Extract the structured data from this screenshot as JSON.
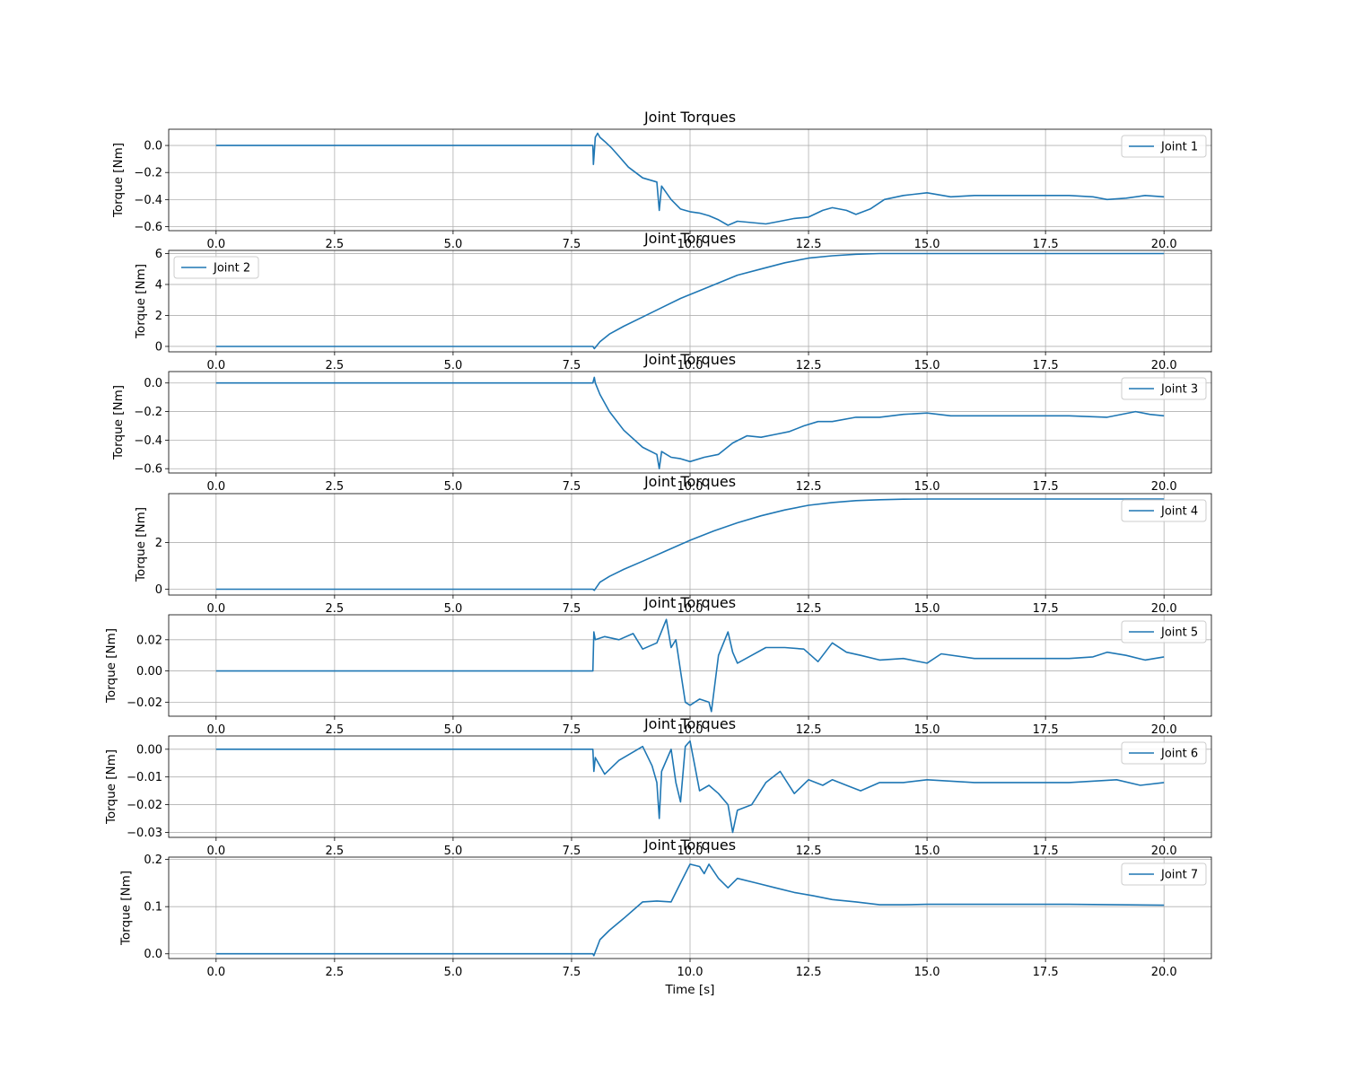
{
  "figure": {
    "background": "#ffffff",
    "line_color": "#1f77b4",
    "grid_color": "#b0b0b0"
  },
  "chart_data": [
    {
      "type": "line",
      "title": "Joint Torques",
      "xlabel": "",
      "ylabel": "Torque [Nm]",
      "xlim": [
        -1.0,
        21.0
      ],
      "ylim": [
        -0.63,
        0.12
      ],
      "xticks": [
        0.0,
        2.5,
        5.0,
        7.5,
        10.0,
        12.5,
        15.0,
        17.5,
        20.0
      ],
      "xtick_labels": [
        "0.0",
        "2.5",
        "5.0",
        "7.5",
        "10.0",
        "12.5",
        "15.0",
        "17.5",
        "20.0"
      ],
      "yticks": [
        0.0,
        -0.2,
        -0.4,
        -0.6
      ],
      "ytick_labels": [
        "0.0",
        "−0.2",
        "−0.4",
        "−0.6"
      ],
      "grid": true,
      "legend_position": "upper-right",
      "series": [
        {
          "name": "Joint 1",
          "x": [
            0.0,
            7.95,
            7.96,
            7.98,
            8.0,
            8.05,
            8.1,
            8.2,
            8.35,
            8.5,
            8.7,
            9.0,
            9.3,
            9.35,
            9.4,
            9.6,
            9.8,
            10.0,
            10.2,
            10.4,
            10.6,
            10.8,
            11.0,
            11.3,
            11.6,
            11.9,
            12.2,
            12.5,
            12.8,
            13.0,
            13.3,
            13.5,
            13.8,
            14.1,
            14.5,
            15.0,
            15.5,
            16.0,
            17.0,
            18.0,
            18.5,
            18.8,
            19.2,
            19.6,
            20.0
          ],
          "y": [
            0.0,
            0.0,
            -0.14,
            -0.05,
            0.06,
            0.09,
            0.06,
            0.03,
            -0.02,
            -0.08,
            -0.16,
            -0.24,
            -0.27,
            -0.48,
            -0.3,
            -0.4,
            -0.47,
            -0.49,
            -0.5,
            -0.52,
            -0.55,
            -0.59,
            -0.56,
            -0.57,
            -0.58,
            -0.56,
            -0.54,
            -0.53,
            -0.48,
            -0.46,
            -0.48,
            -0.51,
            -0.47,
            -0.4,
            -0.37,
            -0.35,
            -0.38,
            -0.37,
            -0.37,
            -0.37,
            -0.38,
            -0.4,
            -0.39,
            -0.37,
            -0.38
          ]
        }
      ]
    },
    {
      "type": "line",
      "title": "Joint Torques",
      "xlabel": "",
      "ylabel": "Torque [Nm]",
      "xlim": [
        -1.0,
        21.0
      ],
      "ylim": [
        -0.35,
        6.2
      ],
      "xticks": [
        0.0,
        2.5,
        5.0,
        7.5,
        10.0,
        12.5,
        15.0,
        17.5,
        20.0
      ],
      "xtick_labels": [
        "0.0",
        "2.5",
        "5.0",
        "7.5",
        "10.0",
        "12.5",
        "15.0",
        "17.5",
        "20.0"
      ],
      "yticks": [
        0,
        2,
        4,
        6
      ],
      "ytick_labels": [
        "0",
        "2",
        "4",
        "6"
      ],
      "grid": true,
      "legend_position": "upper-left",
      "series": [
        {
          "name": "Joint 2",
          "x": [
            0.0,
            7.95,
            7.98,
            8.1,
            8.3,
            8.6,
            9.0,
            9.4,
            9.8,
            10.2,
            10.6,
            11.0,
            11.5,
            12.0,
            12.5,
            13.0,
            13.5,
            14.0,
            15.0,
            16.0,
            17.0,
            18.0,
            19.0,
            20.0
          ],
          "y": [
            0.0,
            0.0,
            -0.15,
            0.3,
            0.8,
            1.3,
            1.9,
            2.5,
            3.1,
            3.6,
            4.1,
            4.6,
            5.0,
            5.4,
            5.7,
            5.85,
            5.95,
            6.0,
            6.0,
            6.0,
            6.0,
            6.0,
            6.0,
            6.0
          ]
        }
      ]
    },
    {
      "type": "line",
      "title": "Joint Torques",
      "xlabel": "",
      "ylabel": "Torque [Nm]",
      "xlim": [
        -1.0,
        21.0
      ],
      "ylim": [
        -0.63,
        0.08
      ],
      "xticks": [
        0.0,
        2.5,
        5.0,
        7.5,
        10.0,
        12.5,
        15.0,
        17.5,
        20.0
      ],
      "xtick_labels": [
        "0.0",
        "2.5",
        "5.0",
        "7.5",
        "10.0",
        "12.5",
        "15.0",
        "17.5",
        "20.0"
      ],
      "yticks": [
        0.0,
        -0.2,
        -0.4,
        -0.6
      ],
      "ytick_labels": [
        "0.0",
        "−0.2",
        "−0.4",
        "−0.6"
      ],
      "grid": true,
      "legend_position": "upper-right",
      "series": [
        {
          "name": "Joint 3",
          "x": [
            0.0,
            7.95,
            7.98,
            8.0,
            8.1,
            8.3,
            8.6,
            9.0,
            9.3,
            9.35,
            9.4,
            9.6,
            9.8,
            10.0,
            10.3,
            10.6,
            10.9,
            11.2,
            11.5,
            11.8,
            12.1,
            12.4,
            12.7,
            13.0,
            13.5,
            14.0,
            14.5,
            15.0,
            15.5,
            16.0,
            17.0,
            18.0,
            18.8,
            19.4,
            19.7,
            20.0
          ],
          "y": [
            0.0,
            0.0,
            0.04,
            0.0,
            -0.08,
            -0.2,
            -0.33,
            -0.45,
            -0.5,
            -0.6,
            -0.48,
            -0.52,
            -0.53,
            -0.55,
            -0.52,
            -0.5,
            -0.42,
            -0.37,
            -0.38,
            -0.36,
            -0.34,
            -0.3,
            -0.27,
            -0.27,
            -0.24,
            -0.24,
            -0.22,
            -0.21,
            -0.23,
            -0.23,
            -0.23,
            -0.23,
            -0.24,
            -0.2,
            -0.22,
            -0.23
          ]
        }
      ]
    },
    {
      "type": "line",
      "title": "Joint Torques",
      "xlabel": "",
      "ylabel": "Torque [Nm]",
      "xlim": [
        -1.0,
        21.0
      ],
      "ylim": [
        -0.25,
        4.1
      ],
      "xticks": [
        0.0,
        2.5,
        5.0,
        7.5,
        10.0,
        12.5,
        15.0,
        17.5,
        20.0
      ],
      "xtick_labels": [
        "0.0",
        "2.5",
        "5.0",
        "7.5",
        "10.0",
        "12.5",
        "15.0",
        "17.5",
        "20.0"
      ],
      "yticks": [
        0,
        2
      ],
      "ytick_labels": [
        "0",
        "2"
      ],
      "grid": true,
      "legend_position": "upper-right",
      "series": [
        {
          "name": "Joint 4",
          "x": [
            0.0,
            7.95,
            7.98,
            8.1,
            8.3,
            8.6,
            9.0,
            9.5,
            10.0,
            10.5,
            11.0,
            11.5,
            12.0,
            12.5,
            13.0,
            13.5,
            14.0,
            14.5,
            15.0,
            16.0,
            17.0,
            18.0,
            19.0,
            20.0
          ],
          "y": [
            0.0,
            0.0,
            -0.05,
            0.3,
            0.55,
            0.85,
            1.2,
            1.65,
            2.1,
            2.5,
            2.85,
            3.15,
            3.4,
            3.6,
            3.72,
            3.8,
            3.84,
            3.86,
            3.87,
            3.87,
            3.87,
            3.87,
            3.87,
            3.87
          ]
        }
      ]
    },
    {
      "type": "line",
      "title": "Joint Torques",
      "xlabel": "",
      "ylabel": "Torque [Nm]",
      "xlim": [
        -1.0,
        21.0
      ],
      "ylim": [
        -0.029,
        0.036
      ],
      "xticks": [
        0.0,
        2.5,
        5.0,
        7.5,
        10.0,
        12.5,
        15.0,
        17.5,
        20.0
      ],
      "xtick_labels": [
        "0.0",
        "2.5",
        "5.0",
        "7.5",
        "10.0",
        "12.5",
        "15.0",
        "17.5",
        "20.0"
      ],
      "yticks": [
        0.02,
        0.0,
        -0.02
      ],
      "ytick_labels": [
        "0.02",
        "0.00",
        "−0.02"
      ],
      "grid": true,
      "legend_position": "upper-right",
      "series": [
        {
          "name": "Joint 5",
          "x": [
            0.0,
            7.95,
            7.97,
            8.0,
            8.2,
            8.5,
            8.8,
            9.0,
            9.3,
            9.5,
            9.6,
            9.7,
            9.8,
            9.9,
            10.0,
            10.2,
            10.4,
            10.45,
            10.6,
            10.8,
            10.9,
            11.0,
            11.3,
            11.6,
            12.0,
            12.4,
            12.7,
            13.0,
            13.3,
            13.6,
            14.0,
            14.5,
            15.0,
            15.3,
            16.0,
            17.0,
            18.0,
            18.5,
            18.8,
            19.2,
            19.6,
            20.0
          ],
          "y": [
            0.0,
            0.0,
            0.025,
            0.02,
            0.022,
            0.02,
            0.024,
            0.014,
            0.018,
            0.033,
            0.015,
            0.02,
            0.0,
            -0.02,
            -0.022,
            -0.018,
            -0.02,
            -0.026,
            0.01,
            0.025,
            0.012,
            0.005,
            0.01,
            0.015,
            0.015,
            0.014,
            0.006,
            0.018,
            0.012,
            0.01,
            0.007,
            0.008,
            0.005,
            0.011,
            0.008,
            0.008,
            0.008,
            0.009,
            0.012,
            0.01,
            0.007,
            0.009
          ]
        }
      ]
    },
    {
      "type": "line",
      "title": "Joint Torques",
      "xlabel": "",
      "ylabel": "Torque [Nm]",
      "xlim": [
        -1.0,
        21.0
      ],
      "ylim": [
        -0.0318,
        0.0048
      ],
      "xticks": [
        0.0,
        2.5,
        5.0,
        7.5,
        10.0,
        12.5,
        15.0,
        17.5,
        20.0
      ],
      "xtick_labels": [
        "0.0",
        "2.5",
        "5.0",
        "7.5",
        "10.0",
        "12.5",
        "15.0",
        "17.5",
        "20.0"
      ],
      "yticks": [
        0.0,
        -0.01,
        -0.02,
        -0.03
      ],
      "ytick_labels": [
        "0.00",
        "−0.01",
        "−0.02",
        "−0.03"
      ],
      "grid": true,
      "legend_position": "upper-right",
      "series": [
        {
          "name": "Joint 6",
          "x": [
            0.0,
            7.95,
            7.97,
            8.0,
            8.2,
            8.5,
            8.8,
            9.0,
            9.2,
            9.3,
            9.35,
            9.4,
            9.6,
            9.7,
            9.8,
            9.9,
            10.0,
            10.1,
            10.2,
            10.4,
            10.6,
            10.8,
            10.9,
            11.0,
            11.3,
            11.6,
            11.9,
            12.2,
            12.5,
            12.8,
            13.0,
            13.3,
            13.6,
            14.0,
            14.5,
            15.0,
            16.0,
            17.0,
            18.0,
            19.0,
            19.5,
            20.0
          ],
          "y": [
            0.0,
            0.0,
            -0.008,
            -0.003,
            -0.009,
            -0.004,
            -0.001,
            0.001,
            -0.006,
            -0.012,
            -0.025,
            -0.008,
            0.0,
            -0.012,
            -0.019,
            0.001,
            0.003,
            -0.006,
            -0.015,
            -0.013,
            -0.016,
            -0.02,
            -0.03,
            -0.022,
            -0.02,
            -0.012,
            -0.008,
            -0.016,
            -0.011,
            -0.013,
            -0.011,
            -0.013,
            -0.015,
            -0.012,
            -0.012,
            -0.011,
            -0.012,
            -0.012,
            -0.012,
            -0.011,
            -0.013,
            -0.012
          ]
        }
      ]
    },
    {
      "type": "line",
      "title": "Joint Torques",
      "xlabel": "Time [s]",
      "ylabel": "Torque [Nm]",
      "xlim": [
        -1.0,
        21.0
      ],
      "ylim": [
        -0.01,
        0.205
      ],
      "xticks": [
        0.0,
        2.5,
        5.0,
        7.5,
        10.0,
        12.5,
        15.0,
        17.5,
        20.0
      ],
      "xtick_labels": [
        "0.0",
        "2.5",
        "5.0",
        "7.5",
        "10.0",
        "12.5",
        "15.0",
        "17.5",
        "20.0"
      ],
      "yticks": [
        0.0,
        0.1,
        0.2
      ],
      "ytick_labels": [
        "0.0",
        "0.1",
        "0.2"
      ],
      "grid": true,
      "legend_position": "upper-right",
      "series": [
        {
          "name": "Joint 7",
          "x": [
            0.0,
            7.95,
            7.97,
            8.1,
            8.3,
            8.6,
            9.0,
            9.3,
            9.6,
            9.8,
            10.0,
            10.2,
            10.3,
            10.4,
            10.6,
            10.8,
            11.0,
            11.4,
            11.8,
            12.2,
            12.6,
            13.0,
            13.5,
            14.0,
            14.5,
            15.0,
            16.0,
            17.0,
            18.0,
            19.0,
            20.0
          ],
          "y": [
            0.0,
            0.0,
            -0.004,
            0.03,
            0.05,
            0.075,
            0.11,
            0.112,
            0.11,
            0.15,
            0.19,
            0.185,
            0.17,
            0.19,
            0.16,
            0.14,
            0.16,
            0.15,
            0.14,
            0.13,
            0.123,
            0.115,
            0.11,
            0.104,
            0.104,
            0.105,
            0.105,
            0.105,
            0.105,
            0.104,
            0.103
          ]
        }
      ]
    }
  ]
}
